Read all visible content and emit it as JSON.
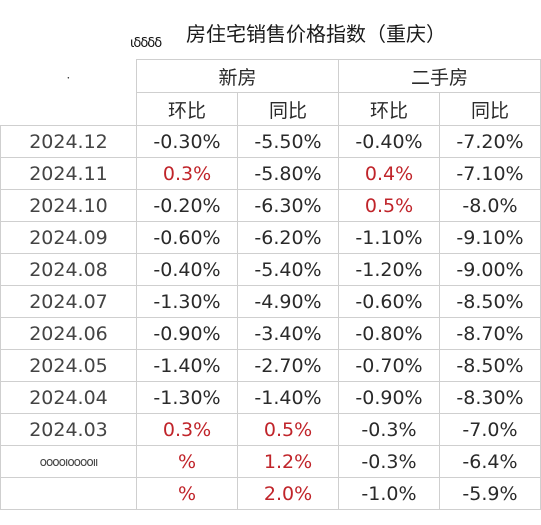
{
  "title": {
    "doodle": "ιδδδδ",
    "text": "房住宅销售价格指数（重庆）"
  },
  "header": {
    "corner_mark": "ㆍ",
    "group_new": "新房",
    "group_second": "二手房",
    "sub_labels": [
      "环比",
      "同比",
      "环比",
      "同比"
    ]
  },
  "rows": [
    {
      "date": "2024.12",
      "values": [
        "-0.30%",
        "-5.50%",
        "-0.40%",
        "-7.20%"
      ],
      "red": [
        false,
        false,
        false,
        false
      ]
    },
    {
      "date": "2024.11",
      "values": [
        "0.3%",
        "-5.80%",
        "0.4%",
        "-7.10%"
      ],
      "red": [
        true,
        false,
        true,
        false
      ]
    },
    {
      "date": "2024.10",
      "values": [
        "-0.20%",
        "-6.30%",
        "0.5%",
        "-8.0%"
      ],
      "red": [
        false,
        false,
        true,
        false
      ]
    },
    {
      "date": "2024.09",
      "values": [
        "-0.60%",
        "-6.20%",
        "-1.10%",
        "-9.10%"
      ],
      "red": [
        false,
        false,
        false,
        false
      ]
    },
    {
      "date": "2024.08",
      "values": [
        "-0.40%",
        "-5.40%",
        "-1.20%",
        "-9.00%"
      ],
      "red": [
        false,
        false,
        false,
        false
      ]
    },
    {
      "date": "2024.07",
      "values": [
        "-1.30%",
        "-4.90%",
        "-0.60%",
        "-8.50%"
      ],
      "red": [
        false,
        false,
        false,
        false
      ]
    },
    {
      "date": "2024.06",
      "values": [
        "-0.90%",
        "-3.40%",
        "-0.80%",
        "-8.70%"
      ],
      "red": [
        false,
        false,
        false,
        false
      ]
    },
    {
      "date": "2024.05",
      "values": [
        "-1.40%",
        "-2.70%",
        "-0.70%",
        "-8.50%"
      ],
      "red": [
        false,
        false,
        false,
        false
      ]
    },
    {
      "date": "2024.04",
      "values": [
        "-1.30%",
        "-1.40%",
        "-0.90%",
        "-8.30%"
      ],
      "red": [
        false,
        false,
        false,
        false
      ]
    },
    {
      "date": "2024.03",
      "values": [
        "0.3%",
        "0.5%",
        "-0.3%",
        "-7.0%"
      ],
      "red": [
        true,
        true,
        false,
        false
      ]
    },
    {
      "date": "ooooıooooıı",
      "values": [
        "%",
        "1.2%",
        "-0.3%",
        "-6.4%"
      ],
      "red": [
        true,
        true,
        false,
        false
      ]
    },
    {
      "date": "",
      "values": [
        "%",
        "2.0%",
        "-1.0%",
        "-5.9%"
      ],
      "red": [
        true,
        true,
        false,
        false
      ]
    }
  ],
  "colors": {
    "red": "#c0242a",
    "text": "#2a2a2a",
    "border": "#cfcfcf"
  }
}
